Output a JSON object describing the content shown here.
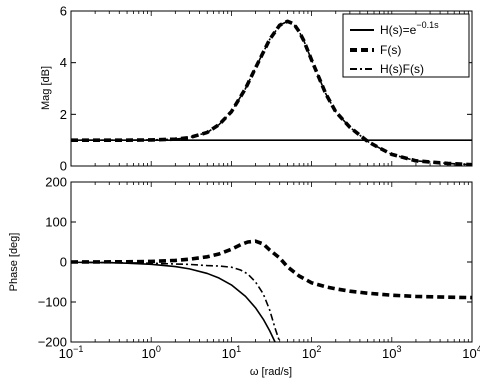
{
  "chart_data": [
    {
      "type": "line",
      "ylabel": "Mag [dB]",
      "xscale": "log",
      "xlim": [
        0.1,
        10000
      ],
      "ylim": [
        0,
        6
      ],
      "yticks": [
        {
          "v": 0,
          "label": "0"
        },
        {
          "v": 2,
          "label": "2"
        },
        {
          "v": 4,
          "label": "4"
        },
        {
          "v": 6,
          "label": "6"
        }
      ],
      "grid": false,
      "legend": {
        "placement": "top-right",
        "entries": [
          {
            "prefix": "H(s)=e",
            "sup": "−0.1s",
            "style": "solid"
          },
          {
            "prefix": "F(s)",
            "sup": "",
            "style": "dashed"
          },
          {
            "prefix": "H(s)F(s)",
            "sup": "",
            "style": "dashdot"
          }
        ]
      },
      "series": [
        {
          "style": "solid",
          "x": [
            0.1,
            10000
          ],
          "y": [
            1.0,
            1.0
          ]
        },
        {
          "style": "dashed",
          "x": [
            0.1,
            0.5,
            1,
            2,
            3,
            5,
            7,
            10,
            15,
            20,
            30,
            40,
            50,
            60,
            70,
            80,
            100,
            150,
            200,
            300,
            500,
            700,
            1000,
            2000,
            5000,
            10000
          ],
          "y": [
            1.0,
            1.0,
            1.01,
            1.04,
            1.1,
            1.3,
            1.6,
            2.1,
            3.0,
            3.8,
            4.9,
            5.45,
            5.6,
            5.5,
            5.2,
            4.85,
            4.1,
            2.8,
            2.1,
            1.5,
            0.95,
            0.7,
            0.45,
            0.2,
            0.1,
            0.05
          ]
        },
        {
          "style": "dashdot",
          "x": [
            0.1,
            0.5,
            1,
            2,
            3,
            5,
            7,
            10,
            15,
            20,
            30,
            40,
            50,
            60,
            70,
            80,
            100,
            150,
            200,
            300,
            500,
            700,
            1000,
            2000,
            5000,
            10000
          ],
          "y": [
            1.0,
            1.0,
            1.01,
            1.04,
            1.1,
            1.3,
            1.6,
            2.1,
            3.0,
            3.8,
            4.9,
            5.45,
            5.6,
            5.5,
            5.2,
            4.85,
            4.1,
            2.8,
            2.1,
            1.5,
            0.95,
            0.7,
            0.45,
            0.2,
            0.1,
            0.05
          ]
        }
      ]
    },
    {
      "type": "line",
      "xlabel": "ω [rad/s]",
      "ylabel": "Phase [deg]",
      "xscale": "log",
      "xlim": [
        0.1,
        10000
      ],
      "ylim": [
        -200,
        200
      ],
      "xticks": [
        {
          "v": 0.1,
          "base": "10",
          "exp": "−1"
        },
        {
          "v": 1,
          "base": "10",
          "exp": "0"
        },
        {
          "v": 10,
          "base": "10",
          "exp": "1"
        },
        {
          "v": 100,
          "base": "10",
          "exp": "2"
        },
        {
          "v": 1000,
          "base": "10",
          "exp": "3"
        },
        {
          "v": 10000,
          "base": "10",
          "exp": "4"
        }
      ],
      "yticks": [
        {
          "v": -200,
          "label": "−200"
        },
        {
          "v": -100,
          "label": "−100"
        },
        {
          "v": 0,
          "label": "0"
        },
        {
          "v": 100,
          "label": "100"
        },
        {
          "v": 200,
          "label": "200"
        }
      ],
      "grid": false,
      "series": [
        {
          "style": "solid",
          "x": [
            0.1,
            0.3,
            0.5,
            1,
            2,
            3,
            5,
            7,
            10,
            15,
            20,
            25,
            30,
            35
          ],
          "y": [
            -0.6,
            -1.7,
            -2.9,
            -5.7,
            -11.5,
            -17.2,
            -28.6,
            -40.1,
            -57.3,
            -85.9,
            -114.6,
            -143.2,
            -171.9,
            -200
          ]
        },
        {
          "style": "dashed",
          "x": [
            0.1,
            0.5,
            1,
            2,
            3,
            5,
            7,
            10,
            13,
            16,
            20,
            25,
            30,
            40,
            50,
            70,
            100,
            150,
            200,
            300,
            500,
            1000,
            2000,
            5000,
            10000
          ],
          "y": [
            0,
            0.5,
            1.5,
            4,
            7,
            13,
            20,
            32,
            43,
            50,
            52,
            45,
            30,
            10,
            -12,
            -35,
            -52,
            -62,
            -67,
            -73,
            -78,
            -83,
            -86,
            -88,
            -89
          ]
        },
        {
          "style": "dashdot",
          "x": [
            0.1,
            0.5,
            1,
            2,
            3,
            5,
            7,
            10,
            13,
            16,
            20,
            25,
            30,
            35,
            40
          ],
          "y": [
            -0.5,
            -2,
            -3,
            -5,
            -6,
            -9,
            -10,
            -13,
            -20,
            -30,
            -50,
            -80,
            -120,
            -165,
            -200
          ]
        }
      ]
    }
  ]
}
